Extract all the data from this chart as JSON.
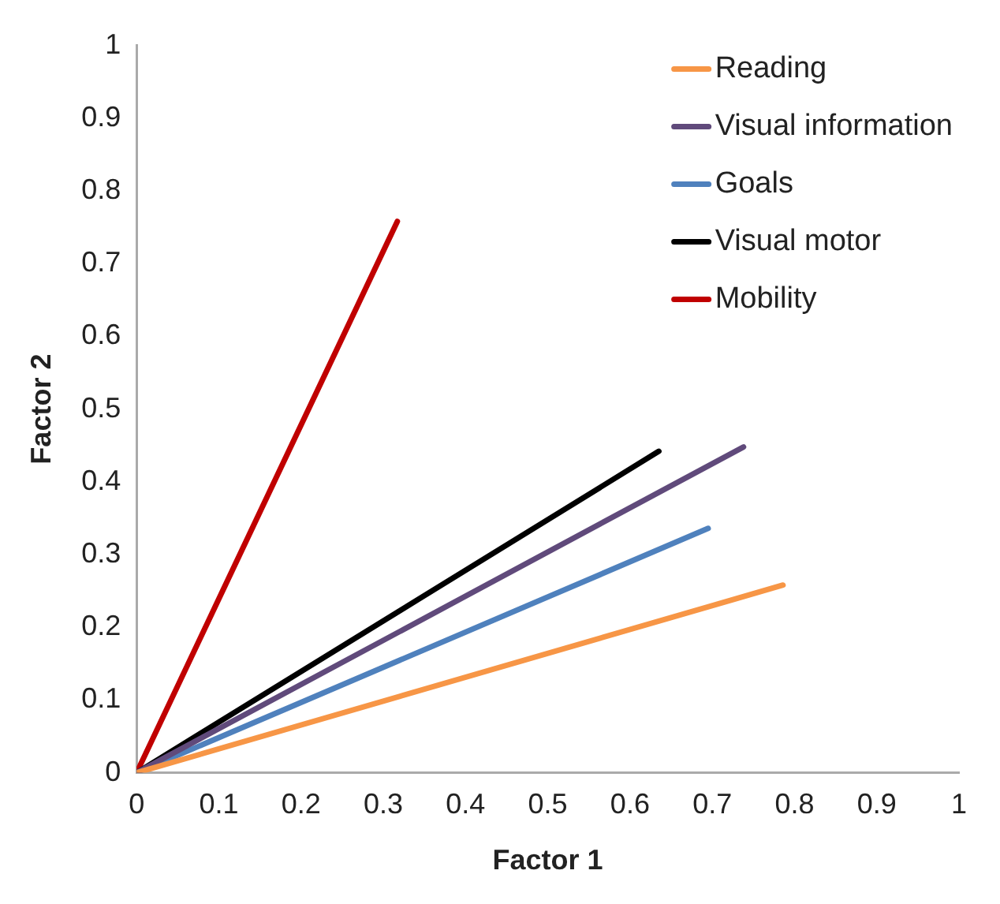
{
  "chart_data": {
    "type": "line",
    "xlabel": "Factor 1",
    "ylabel": "Factor 2",
    "xlim": [
      0,
      1
    ],
    "ylim": [
      0,
      1
    ],
    "xticks": [
      0,
      0.1,
      0.2,
      0.3,
      0.4,
      0.5,
      0.6,
      0.7,
      0.8,
      0.9,
      1
    ],
    "yticks": [
      0,
      0.1,
      0.2,
      0.3,
      0.4,
      0.5,
      0.6,
      0.7,
      0.8,
      0.9,
      1
    ],
    "grid": false,
    "legend": "top right",
    "marker": "none",
    "line_style": "solid",
    "series": [
      {
        "name": "Reading",
        "color": "#f79646",
        "x": [
          0,
          0.786
        ],
        "values": [
          0,
          0.258
        ]
      },
      {
        "name": "Visual information",
        "color": "#604a7b",
        "x": [
          0,
          0.738
        ],
        "values": [
          0,
          0.448
        ]
      },
      {
        "name": "Goals",
        "color": "#4f81bd",
        "x": [
          0,
          0.695
        ],
        "values": [
          0,
          0.336
        ]
      },
      {
        "name": "Visual motor",
        "color": "#000000",
        "x": [
          0,
          0.635
        ],
        "values": [
          0,
          0.442
        ]
      },
      {
        "name": "Mobility",
        "color": "#c00000",
        "x": [
          0,
          0.317
        ],
        "values": [
          0,
          0.758
        ]
      }
    ]
  }
}
